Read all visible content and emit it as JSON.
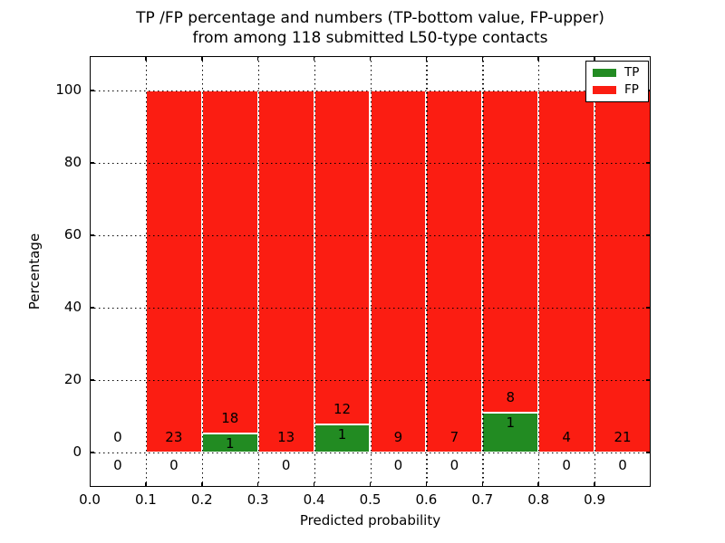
{
  "title": {
    "line1": "TP /FP percentage and numbers (TP-bottom value, FP-upper)",
    "line2": "from among 118 submitted L50-type contacts"
  },
  "axes": {
    "xlabel": "Predicted probability",
    "ylabel": "Percentage",
    "x_tick_labels": [
      "0.0",
      "0.1",
      "0.2",
      "0.3",
      "0.4",
      "0.5",
      "0.6",
      "0.7",
      "0.8",
      "0.9"
    ],
    "x_tick_values": [
      0.0,
      0.1,
      0.2,
      0.3,
      0.4,
      0.5,
      0.6,
      0.7,
      0.8,
      0.9
    ],
    "y_tick_labels": [
      "0",
      "20",
      "40",
      "60",
      "80",
      "100"
    ],
    "y_tick_values": [
      0,
      20,
      40,
      60,
      80,
      100
    ]
  },
  "legend": [
    {
      "label": "TP",
      "color": "#228b22"
    },
    {
      "label": "FP",
      "color": "#fb1d12"
    }
  ],
  "colors": {
    "tp": "#228b22",
    "fp": "#fb1d12",
    "bar_edge": "#ffffff",
    "grid": "#000000",
    "text": "#000000"
  },
  "chart_data": {
    "type": "bar",
    "stacked": true,
    "title": "TP /FP percentage and numbers (TP-bottom value, FP-upper) from among 118 submitted L50-type contacts",
    "xlabel": "Predicted probability",
    "ylabel": "Percentage",
    "xlim": [
      0.0,
      1.0
    ],
    "ylim": [
      -9.5,
      109.5
    ],
    "bin_width": 0.1,
    "total_contacts": 118,
    "grid": "dotted, drawn above bars",
    "legend_position": "upper right",
    "series": [
      {
        "name": "TP",
        "color": "#228b22"
      },
      {
        "name": "FP",
        "color": "#fb1d12"
      }
    ],
    "bins": [
      {
        "x_start": 0.0,
        "x_end": 0.1,
        "fp_count": 0,
        "tp_count": 0,
        "tp_pct": 0,
        "fp_pct": 0,
        "tp_zero_below_axis": true
      },
      {
        "x_start": 0.1,
        "x_end": 0.2,
        "fp_count": 23,
        "tp_count": 0,
        "tp_pct": 0,
        "fp_pct": 100,
        "tp_zero_below_axis": true
      },
      {
        "x_start": 0.2,
        "x_end": 0.3,
        "fp_count": 18,
        "tp_count": 1,
        "tp_pct": 5.26,
        "fp_pct": 94.74,
        "tp_zero_below_axis": false
      },
      {
        "x_start": 0.3,
        "x_end": 0.4,
        "fp_count": 13,
        "tp_count": 0,
        "tp_pct": 0,
        "fp_pct": 100,
        "tp_zero_below_axis": true
      },
      {
        "x_start": 0.4,
        "x_end": 0.5,
        "fp_count": 12,
        "tp_count": 1,
        "tp_pct": 7.69,
        "fp_pct": 92.31,
        "tp_zero_below_axis": false
      },
      {
        "x_start": 0.5,
        "x_end": 0.6,
        "fp_count": 9,
        "tp_count": 0,
        "tp_pct": 0,
        "fp_pct": 100,
        "tp_zero_below_axis": true
      },
      {
        "x_start": 0.6,
        "x_end": 0.7,
        "fp_count": 7,
        "tp_count": 0,
        "tp_pct": 0,
        "fp_pct": 100,
        "tp_zero_below_axis": true
      },
      {
        "x_start": 0.7,
        "x_end": 0.8,
        "fp_count": 8,
        "tp_count": 1,
        "tp_pct": 11.11,
        "fp_pct": 88.89,
        "tp_zero_below_axis": false
      },
      {
        "x_start": 0.8,
        "x_end": 0.9,
        "fp_count": 4,
        "tp_count": 0,
        "tp_pct": 0,
        "fp_pct": 100,
        "tp_zero_below_axis": true
      },
      {
        "x_start": 0.9,
        "x_end": 1.0,
        "fp_count": 21,
        "tp_count": 0,
        "tp_pct": 0,
        "fp_pct": 100,
        "tp_zero_below_axis": true
      }
    ]
  }
}
